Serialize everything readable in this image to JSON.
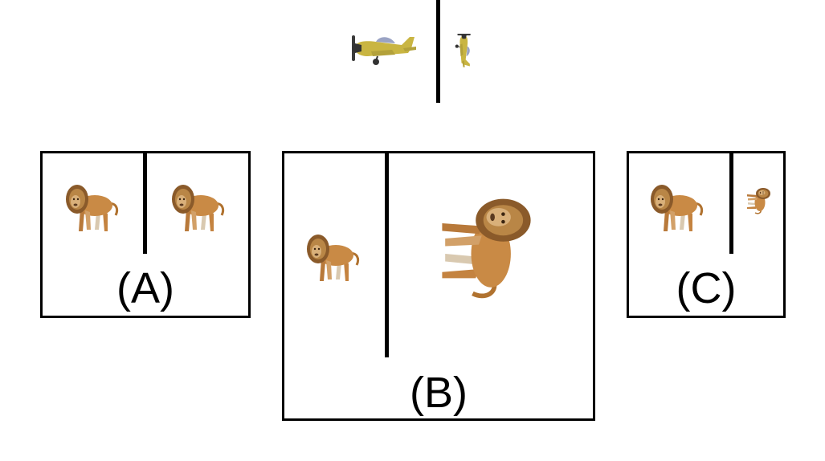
{
  "example": {
    "icons": [
      "airplane-icon",
      "airplane-rotated-icon"
    ]
  },
  "panels": [
    {
      "id": "A",
      "label": "(A)",
      "icons": [
        "lion-icon",
        "lion-icon"
      ]
    },
    {
      "id": "B",
      "label": "(B)",
      "icons": [
        "lion-icon",
        "lion-rotated-large-icon"
      ]
    },
    {
      "id": "C",
      "label": "(C)",
      "icons": [
        "lion-icon",
        "lion-rotated-small-icon"
      ]
    }
  ]
}
